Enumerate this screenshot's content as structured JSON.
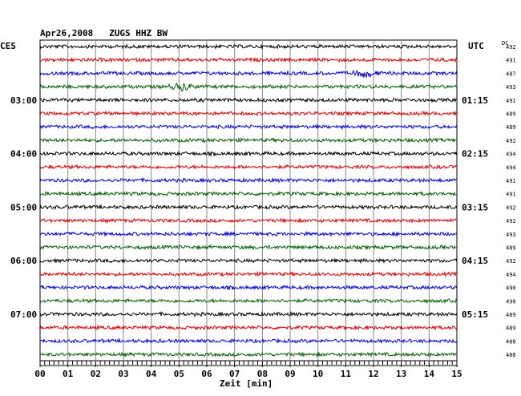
{
  "chart_data": {
    "type": "line",
    "title": "Apr26,2008   ZUGS HHZ BW",
    "left_axis_label": "CES",
    "right_axis_label": "UTC",
    "dc_label": "DC",
    "xlabel": "Zeit [min]",
    "xlim": [
      0,
      15
    ],
    "x_ticks": [
      "00",
      "01",
      "02",
      "03",
      "04",
      "05",
      "06",
      "07",
      "08",
      "09",
      "10",
      "11",
      "12",
      "13",
      "14",
      "15"
    ],
    "grid": true,
    "trace_colors": [
      "#000000",
      "#e00000",
      "#0000e0",
      "#006000"
    ],
    "left_time_labels": [
      {
        "trace": 4,
        "label": "03:00"
      },
      {
        "trace": 8,
        "label": "04:00"
      },
      {
        "trace": 12,
        "label": "05:00"
      },
      {
        "trace": 16,
        "label": "06:00"
      },
      {
        "trace": 20,
        "label": "07:00"
      }
    ],
    "right_time_labels": [
      {
        "trace": 4,
        "label": "01:15"
      },
      {
        "trace": 8,
        "label": "02:15"
      },
      {
        "trace": 12,
        "label": "03:15"
      },
      {
        "trace": 16,
        "label": "04:15"
      },
      {
        "trace": 20,
        "label": "05:15"
      }
    ],
    "dc_values": [
      "492",
      "491",
      "487",
      "493",
      "491",
      "489",
      "489",
      "492",
      "494",
      "494",
      "491",
      "491",
      "492",
      "492",
      "493",
      "489",
      "492",
      "494",
      "490",
      "490",
      "489",
      "489",
      "488",
      "488"
    ],
    "events": [
      {
        "trace": 3,
        "minute": 5.1,
        "label": "local event"
      },
      {
        "trace": 2,
        "minute": 11.7,
        "label": "small event"
      }
    ]
  }
}
